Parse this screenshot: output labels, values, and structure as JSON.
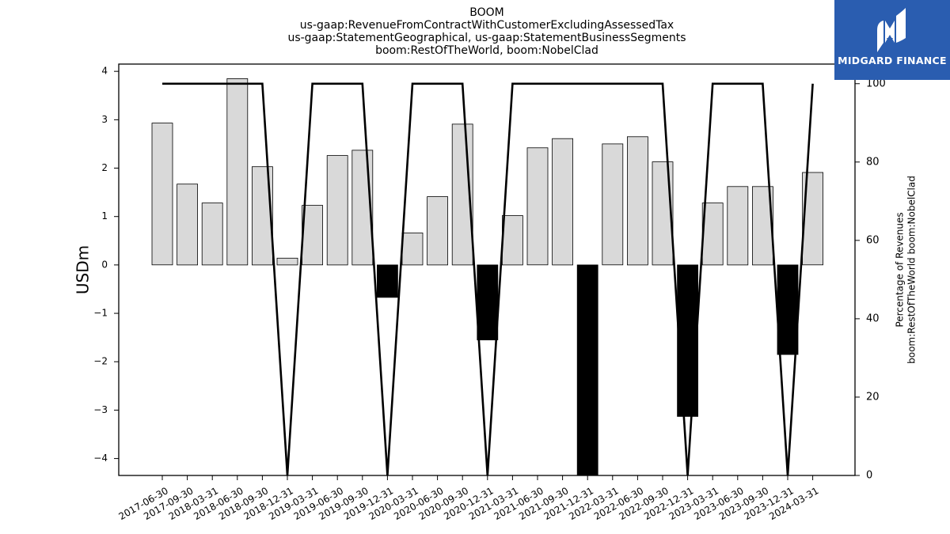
{
  "header": {
    "title": "BOOM",
    "subtitle_lines": [
      "us-gaap:RevenueFromContractWithCustomerExcludingAssessedTax",
      "us-gaap:StatementGeographical, us-gaap:StatementBusinessSegments",
      "boom:RestOfTheWorld, boom:NobelClad"
    ]
  },
  "logo": {
    "text": "MIDGARD FINANCE",
    "bg_color": "#2a5db0",
    "icon": "midgard-m-logo"
  },
  "chart_data": {
    "type": "bar",
    "categories": [
      "2017-06-30",
      "2017-09-30",
      "2018-03-31",
      "2018-06-30",
      "2018-09-30",
      "2018-12-31",
      "2019-03-31",
      "2019-06-30",
      "2019-09-30",
      "2019-12-31",
      "2020-03-31",
      "2020-06-30",
      "2020-09-30",
      "2020-12-31",
      "2021-03-31",
      "2021-06-30",
      "2021-09-30",
      "2021-12-31",
      "2022-03-31",
      "2022-06-30",
      "2022-09-30",
      "2022-12-31",
      "2023-03-31",
      "2023-06-30",
      "2023-09-30",
      "2023-12-31",
      "2024-03-31"
    ],
    "series": [
      {
        "axis": "left",
        "kind": "bar",
        "values": [
          2.93,
          1.67,
          1.28,
          3.85,
          2.03,
          0.14,
          1.23,
          2.26,
          2.37,
          -0.67,
          0.66,
          1.41,
          2.91,
          -1.55,
          1.02,
          2.42,
          2.61,
          -4.35,
          2.5,
          2.65,
          2.13,
          -3.13,
          1.28,
          1.62,
          1.62,
          -1.85,
          1.91
        ],
        "positive_color": "#d9d9d9",
        "negative_color": "#000000"
      },
      {
        "axis": "right",
        "kind": "line",
        "values": [
          100,
          100,
          100,
          100,
          100,
          0,
          100,
          100,
          100,
          0,
          100,
          100,
          100,
          0,
          100,
          100,
          100,
          100,
          100,
          100,
          100,
          0,
          100,
          100,
          100,
          0,
          100
        ],
        "color": "#000000"
      }
    ],
    "ylabel": "USDm",
    "y2label_lines": [
      "Percentage of Revenues",
      "boom:RestOfTheWorld boom:NobelClad"
    ],
    "ylim": [
      -4.35,
      4.15
    ],
    "y2lim": [
      0,
      105
    ],
    "yticks": [
      {
        "v": 4,
        "label": "4"
      },
      {
        "v": 3,
        "label": "3"
      },
      {
        "v": 2,
        "label": "2"
      },
      {
        "v": 1,
        "label": "1"
      },
      {
        "v": 0,
        "label": "0"
      },
      {
        "v": -1,
        "label": "−1"
      },
      {
        "v": -2,
        "label": "−2"
      },
      {
        "v": -3,
        "label": "−3"
      },
      {
        "v": -4,
        "label": "−4"
      }
    ],
    "y2ticks": [
      {
        "v": 0,
        "label": "0"
      },
      {
        "v": 20,
        "label": "20"
      },
      {
        "v": 40,
        "label": "40"
      },
      {
        "v": 60,
        "label": "60"
      },
      {
        "v": 80,
        "label": "80"
      },
      {
        "v": 100,
        "label": "100"
      }
    ],
    "grid": false,
    "legend": "none"
  }
}
